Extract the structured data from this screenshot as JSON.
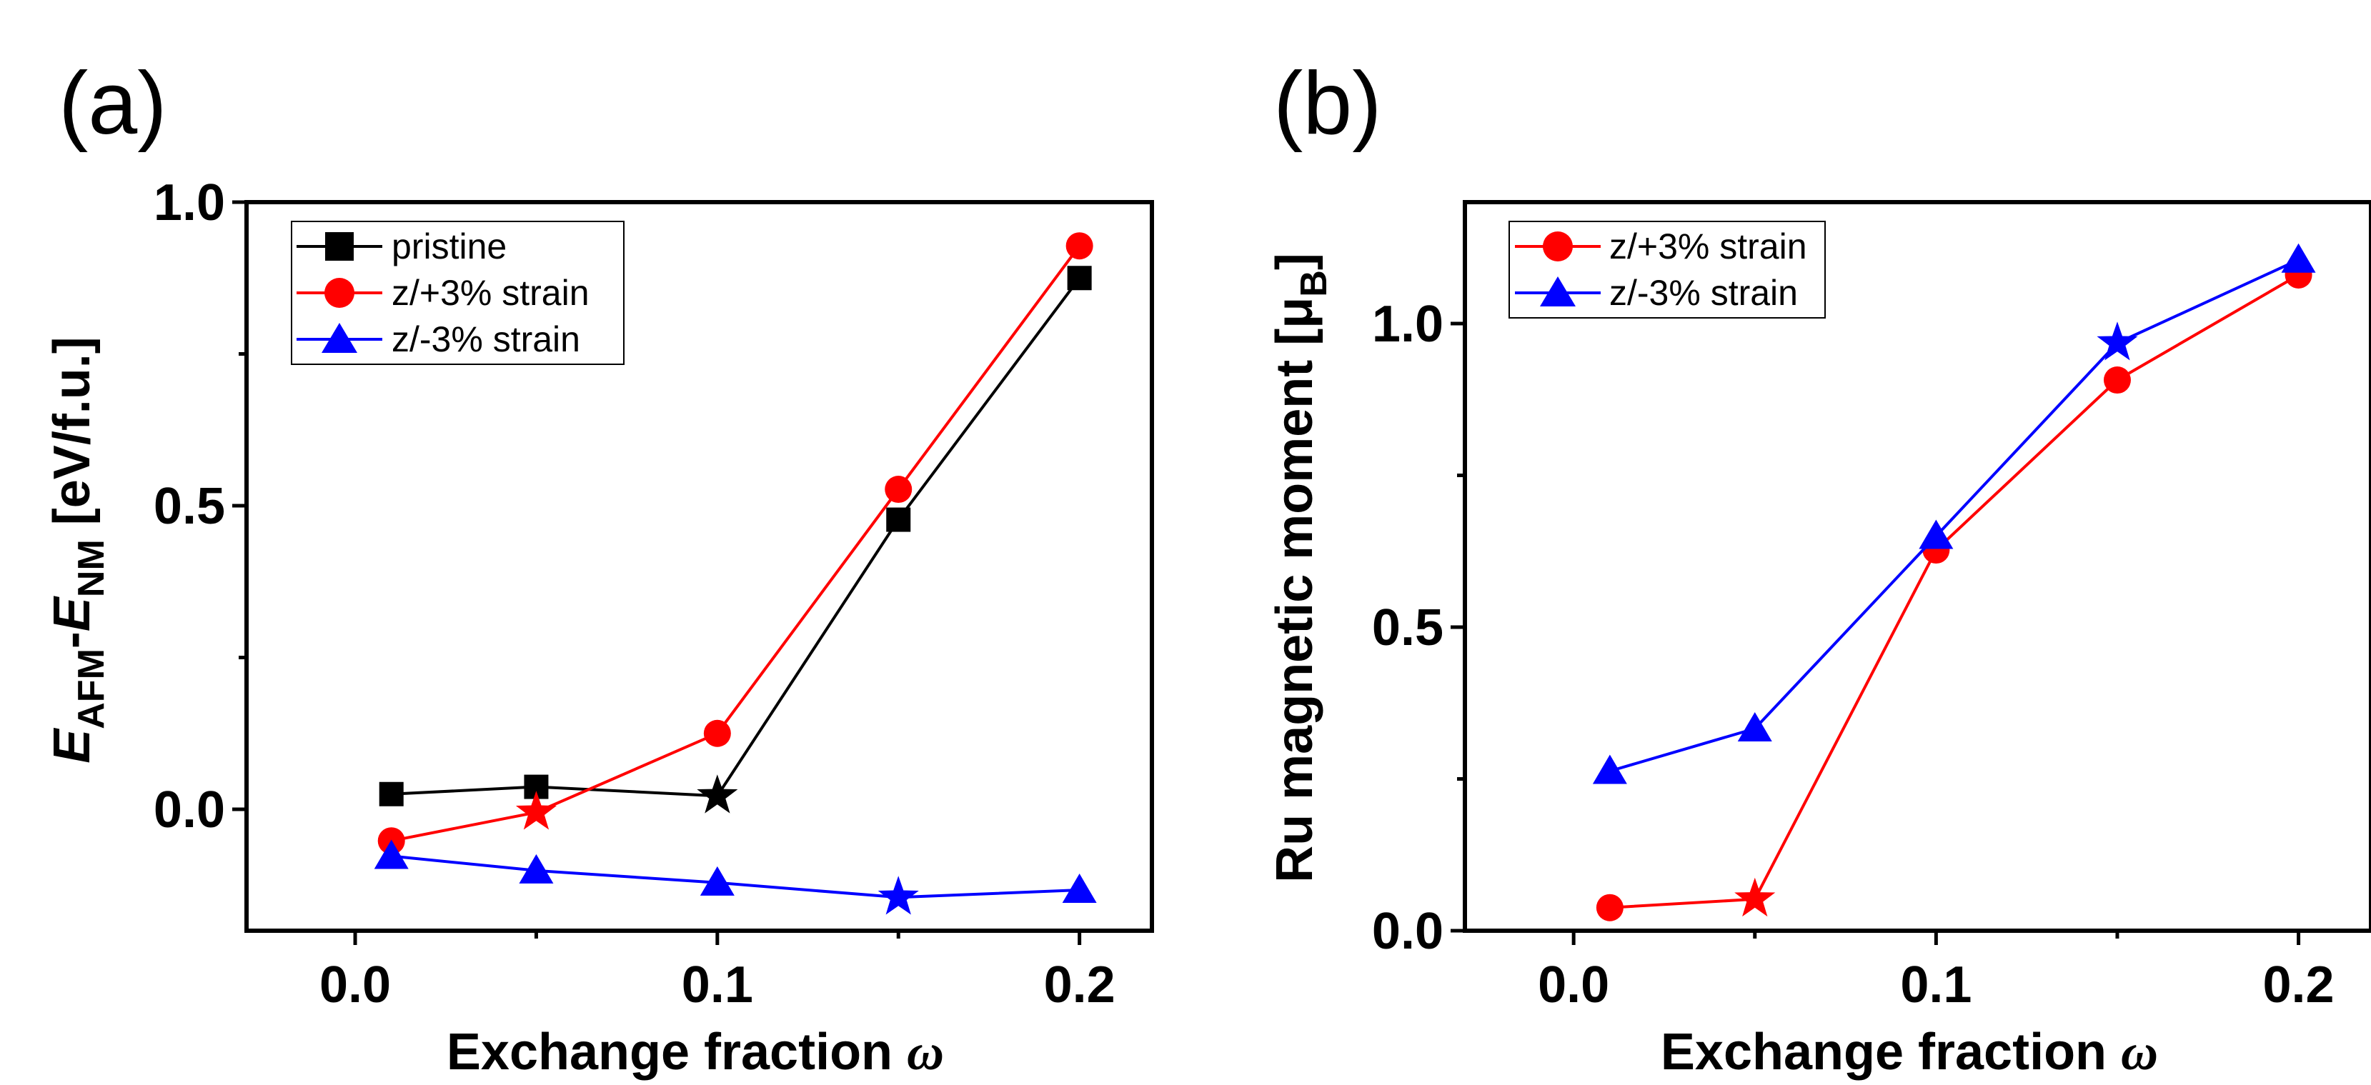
{
  "chart_data": [
    {
      "type": "line",
      "panel_label": "(a)",
      "xlabel": "Exchange fraction ",
      "xlabel_symbol": "ω",
      "ylabel": {
        "e1": "E",
        "sub1": "AFM",
        "dash": "-",
        "e2": "E",
        "sub2": "NM",
        "units": " [eV/f.u.]"
      },
      "xlim": [
        -0.03,
        0.22
      ],
      "ylim": [
        -0.2,
        1.0
      ],
      "xticks": [
        0.0,
        0.1,
        0.2
      ],
      "xtick_labels": [
        "0.0",
        "0.1",
        "0.2"
      ],
      "yticks": [
        0.0,
        0.5,
        1.0
      ],
      "ytick_labels": [
        "0.0",
        "0.5",
        "1.0"
      ],
      "legend_position": "top-left",
      "x": [
        0.01,
        0.05,
        0.1,
        0.15,
        0.2
      ],
      "series": [
        {
          "name": "pristine",
          "color": "#000000",
          "marker": "square",
          "values": [
            0.025,
            0.037,
            0.022,
            0.477,
            0.875
          ],
          "star_index": 2
        },
        {
          "name": "z/+3% strain",
          "color": "#ff0000",
          "marker": "circle",
          "values": [
            -0.052,
            -0.005,
            0.125,
            0.527,
            0.928
          ],
          "star_index": 1
        },
        {
          "name": "z/-3% strain",
          "color": "#0000ff",
          "marker": "triangle",
          "values": [
            -0.077,
            -0.101,
            -0.121,
            -0.145,
            -0.133
          ],
          "star_index": 3
        }
      ]
    },
    {
      "type": "line",
      "panel_label": "(b)",
      "xlabel": "Exchange fraction ",
      "xlabel_symbol": "ω",
      "ylabel": {
        "main": "Ru magnetic moment [μ",
        "sub": "B",
        "end": "]"
      },
      "xlim": [
        -0.03,
        0.22
      ],
      "ylim": [
        0.0,
        1.2
      ],
      "xticks": [
        0.0,
        0.1,
        0.2
      ],
      "xtick_labels": [
        "0.0",
        "0.1",
        "0.2"
      ],
      "yticks": [
        0.0,
        0.5,
        1.0
      ],
      "ytick_labels": [
        "0.0",
        "0.5",
        "1.0"
      ],
      "legend_position": "top-left",
      "x": [
        0.01,
        0.05,
        0.1,
        0.15,
        0.2
      ],
      "series": [
        {
          "name": "z/+3% strain",
          "color": "#ff0000",
          "marker": "circle",
          "values": [
            0.038,
            0.052,
            0.627,
            0.907,
            1.08
          ],
          "star_index": 1
        },
        {
          "name": "z/-3% strain",
          "color": "#0000ff",
          "marker": "triangle",
          "values": [
            0.263,
            0.333,
            0.65,
            0.968,
            1.105
          ],
          "star_index": 3
        }
      ]
    }
  ]
}
